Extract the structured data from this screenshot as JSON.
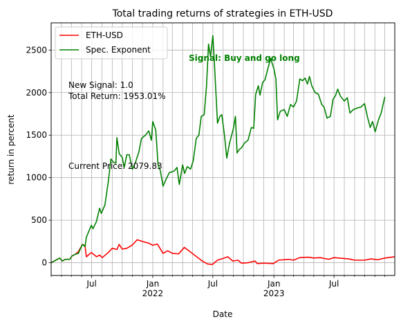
{
  "chart_data": {
    "type": "line",
    "title": "Total trading returns of strategies in ETH-USD",
    "xlabel": "Date",
    "ylabel": "return in percent",
    "xlim": [
      "2021-03-01",
      "2023-12-31"
    ],
    "ylim": [
      -150,
      2820
    ],
    "grid": true,
    "legend_position": "top-left",
    "y_ticks": [
      0,
      500,
      1000,
      1500,
      2000,
      2500
    ],
    "x_ticks_major": [
      {
        "date": "2021-07-01",
        "label": "Jul",
        "label2": ""
      },
      {
        "date": "2022-01-01",
        "label": "Jan",
        "label2": "2022"
      },
      {
        "date": "2022-07-01",
        "label": "Jul",
        "label2": ""
      },
      {
        "date": "2023-01-01",
        "label": "Jan",
        "label2": "2023"
      },
      {
        "date": "2023-07-01",
        "label": "Jul",
        "label2": ""
      }
    ],
    "x_ticks_minor_months": [
      "2021-03-01",
      "2021-04-01",
      "2021-05-01",
      "2021-06-01",
      "2021-08-01",
      "2021-09-01",
      "2021-10-01",
      "2021-11-01",
      "2021-12-01",
      "2022-02-01",
      "2022-03-01",
      "2022-04-01",
      "2022-05-01",
      "2022-06-01",
      "2022-08-01",
      "2022-09-01",
      "2022-10-01",
      "2022-11-01",
      "2022-12-01",
      "2023-02-01",
      "2023-03-01",
      "2023-04-01",
      "2023-05-01",
      "2023-06-01",
      "2023-08-01",
      "2023-09-01",
      "2023-10-01",
      "2023-11-01",
      "2023-12-01"
    ],
    "series": [
      {
        "name": "ETH-USD",
        "color": "#ff0000",
        "points": [
          [
            "2021-03-01",
            0
          ],
          [
            "2021-03-15",
            30
          ],
          [
            "2021-03-27",
            55
          ],
          [
            "2021-04-03",
            20
          ],
          [
            "2021-04-13",
            40
          ],
          [
            "2021-04-26",
            40
          ],
          [
            "2021-05-03",
            80
          ],
          [
            "2021-05-13",
            100
          ],
          [
            "2021-05-22",
            130
          ],
          [
            "2021-06-03",
            215
          ],
          [
            "2021-06-11",
            200
          ],
          [
            "2021-06-15",
            70
          ],
          [
            "2021-06-30",
            120
          ],
          [
            "2021-07-16",
            70
          ],
          [
            "2021-07-25",
            90
          ],
          [
            "2021-08-02",
            60
          ],
          [
            "2021-08-20",
            120
          ],
          [
            "2021-09-01",
            170
          ],
          [
            "2021-09-15",
            155
          ],
          [
            "2021-09-22",
            215
          ],
          [
            "2021-10-01",
            160
          ],
          [
            "2021-10-15",
            170
          ],
          [
            "2021-11-01",
            210
          ],
          [
            "2021-11-15",
            270
          ],
          [
            "2021-12-01",
            250
          ],
          [
            "2021-12-20",
            230
          ],
          [
            "2022-01-01",
            205
          ],
          [
            "2022-01-15",
            220
          ],
          [
            "2022-02-01",
            110
          ],
          [
            "2022-02-15",
            140
          ],
          [
            "2022-03-01",
            110
          ],
          [
            "2022-03-20",
            105
          ],
          [
            "2022-04-06",
            180
          ],
          [
            "2022-04-20",
            140
          ],
          [
            "2022-05-10",
            80
          ],
          [
            "2022-05-30",
            20
          ],
          [
            "2022-06-15",
            -15
          ],
          [
            "2022-06-30",
            -20
          ],
          [
            "2022-07-15",
            30
          ],
          [
            "2022-08-01",
            50
          ],
          [
            "2022-08-15",
            70
          ],
          [
            "2022-08-30",
            20
          ],
          [
            "2022-09-15",
            30
          ],
          [
            "2022-09-25",
            -5
          ],
          [
            "2022-10-15",
            0
          ],
          [
            "2022-11-05",
            20
          ],
          [
            "2022-11-12",
            -10
          ],
          [
            "2022-12-01",
            -5
          ],
          [
            "2022-12-30",
            -10
          ],
          [
            "2023-01-15",
            30
          ],
          [
            "2023-02-15",
            40
          ],
          [
            "2023-03-01",
            30
          ],
          [
            "2023-03-20",
            60
          ],
          [
            "2023-04-15",
            65
          ],
          [
            "2023-05-01",
            55
          ],
          [
            "2023-05-20",
            60
          ],
          [
            "2023-06-15",
            40
          ],
          [
            "2023-07-01",
            60
          ],
          [
            "2023-07-15",
            55
          ],
          [
            "2023-08-15",
            45
          ],
          [
            "2023-09-01",
            30
          ],
          [
            "2023-10-01",
            30
          ],
          [
            "2023-10-20",
            45
          ],
          [
            "2023-11-10",
            35
          ],
          [
            "2023-12-01",
            55
          ],
          [
            "2023-12-31",
            70
          ]
        ]
      },
      {
        "name": "Spec. Exponent",
        "color": "#008000",
        "points": [
          [
            "2021-03-01",
            0
          ],
          [
            "2021-03-15",
            30
          ],
          [
            "2021-03-27",
            55
          ],
          [
            "2021-04-03",
            20
          ],
          [
            "2021-04-13",
            40
          ],
          [
            "2021-04-26",
            40
          ],
          [
            "2021-05-03",
            80
          ],
          [
            "2021-05-13",
            100
          ],
          [
            "2021-05-22",
            110
          ],
          [
            "2021-06-03",
            215
          ],
          [
            "2021-06-11",
            190
          ],
          [
            "2021-06-15",
            300
          ],
          [
            "2021-06-30",
            440
          ],
          [
            "2021-07-05",
            400
          ],
          [
            "2021-07-15",
            480
          ],
          [
            "2021-07-25",
            640
          ],
          [
            "2021-07-30",
            580
          ],
          [
            "2021-08-10",
            680
          ],
          [
            "2021-08-20",
            950
          ],
          [
            "2021-08-28",
            1220
          ],
          [
            "2021-09-05",
            1180
          ],
          [
            "2021-09-12",
            1170
          ],
          [
            "2021-09-15",
            1470
          ],
          [
            "2021-09-22",
            1280
          ],
          [
            "2021-10-01",
            1240
          ],
          [
            "2021-10-07",
            1120
          ],
          [
            "2021-10-15",
            1270
          ],
          [
            "2021-10-22",
            1270
          ],
          [
            "2021-11-01",
            1100
          ],
          [
            "2021-11-10",
            1180
          ],
          [
            "2021-11-20",
            1300
          ],
          [
            "2021-11-28",
            1460
          ],
          [
            "2021-12-10",
            1500
          ],
          [
            "2021-12-20",
            1550
          ],
          [
            "2021-12-28",
            1440
          ],
          [
            "2022-01-01",
            1660
          ],
          [
            "2022-01-10",
            1560
          ],
          [
            "2022-01-17",
            1150
          ],
          [
            "2022-01-24",
            1080
          ],
          [
            "2022-02-01",
            900
          ],
          [
            "2022-02-10",
            980
          ],
          [
            "2022-02-20",
            1060
          ],
          [
            "2022-03-01",
            1070
          ],
          [
            "2022-03-07",
            1080
          ],
          [
            "2022-03-15",
            1120
          ],
          [
            "2022-03-22",
            920
          ],
          [
            "2022-04-01",
            1150
          ],
          [
            "2022-04-07",
            1050
          ],
          [
            "2022-04-15",
            1130
          ],
          [
            "2022-04-25",
            1100
          ],
          [
            "2022-05-03",
            1200
          ],
          [
            "2022-05-12",
            1460
          ],
          [
            "2022-05-20",
            1500
          ],
          [
            "2022-05-27",
            1720
          ],
          [
            "2022-06-05",
            1740
          ],
          [
            "2022-06-12",
            2080
          ],
          [
            "2022-06-18",
            2570
          ],
          [
            "2022-06-24",
            2420
          ],
          [
            "2022-07-01",
            2670
          ],
          [
            "2022-07-05",
            2400
          ],
          [
            "2022-07-15",
            1640
          ],
          [
            "2022-07-22",
            1720
          ],
          [
            "2022-07-28",
            1740
          ],
          [
            "2022-08-05",
            1500
          ],
          [
            "2022-08-12",
            1230
          ],
          [
            "2022-08-20",
            1400
          ],
          [
            "2022-09-01",
            1580
          ],
          [
            "2022-09-07",
            1720
          ],
          [
            "2022-09-12",
            1290
          ],
          [
            "2022-09-18",
            1330
          ],
          [
            "2022-09-25",
            1350
          ],
          [
            "2022-10-05",
            1410
          ],
          [
            "2022-10-15",
            1440
          ],
          [
            "2022-10-25",
            1590
          ],
          [
            "2022-11-01",
            1580
          ],
          [
            "2022-11-07",
            1980
          ],
          [
            "2022-11-15",
            2080
          ],
          [
            "2022-11-20",
            1970
          ],
          [
            "2022-11-28",
            2120
          ],
          [
            "2022-12-05",
            2150
          ],
          [
            "2022-12-15",
            2300
          ],
          [
            "2022-12-22",
            2400
          ],
          [
            "2023-01-01",
            2280
          ],
          [
            "2023-01-07",
            2160
          ],
          [
            "2023-01-12",
            1680
          ],
          [
            "2023-01-20",
            1780
          ],
          [
            "2023-02-01",
            1800
          ],
          [
            "2023-02-10",
            1720
          ],
          [
            "2023-02-20",
            1860
          ],
          [
            "2023-03-01",
            1830
          ],
          [
            "2023-03-10",
            1900
          ],
          [
            "2023-03-20",
            2160
          ],
          [
            "2023-03-28",
            2140
          ],
          [
            "2023-04-05",
            2170
          ],
          [
            "2023-04-12",
            2100
          ],
          [
            "2023-04-18",
            2190
          ],
          [
            "2023-04-25",
            2080
          ],
          [
            "2023-05-05",
            2000
          ],
          [
            "2023-05-15",
            1980
          ],
          [
            "2023-05-25",
            1860
          ],
          [
            "2023-06-01",
            1830
          ],
          [
            "2023-06-10",
            1700
          ],
          [
            "2023-06-20",
            1720
          ],
          [
            "2023-06-28",
            1920
          ],
          [
            "2023-07-05",
            1960
          ],
          [
            "2023-07-12",
            2040
          ],
          [
            "2023-07-20",
            1960
          ],
          [
            "2023-08-01",
            1900
          ],
          [
            "2023-08-10",
            1940
          ],
          [
            "2023-08-18",
            1760
          ],
          [
            "2023-08-28",
            1800
          ],
          [
            "2023-09-10",
            1820
          ],
          [
            "2023-09-20",
            1830
          ],
          [
            "2023-10-01",
            1870
          ],
          [
            "2023-10-10",
            1710
          ],
          [
            "2023-10-18",
            1590
          ],
          [
            "2023-10-25",
            1660
          ],
          [
            "2023-11-02",
            1540
          ],
          [
            "2023-11-12",
            1680
          ],
          [
            "2023-11-20",
            1760
          ],
          [
            "2023-12-01",
            1950
          ]
        ]
      }
    ],
    "annotations": [
      {
        "id": "signal_text",
        "text": "Signal: Buy and go long",
        "color": "#008000",
        "bold": true
      },
      {
        "id": "new_signal",
        "text": "New Signal: 1.0",
        "color": "#000000",
        "bold": false
      },
      {
        "id": "total_return",
        "text": "Total Return: 1953.01%",
        "color": "#000000",
        "bold": false
      },
      {
        "id": "current_price",
        "text": "Current Price: 2079.83",
        "color": "#000000",
        "bold": false
      }
    ]
  }
}
